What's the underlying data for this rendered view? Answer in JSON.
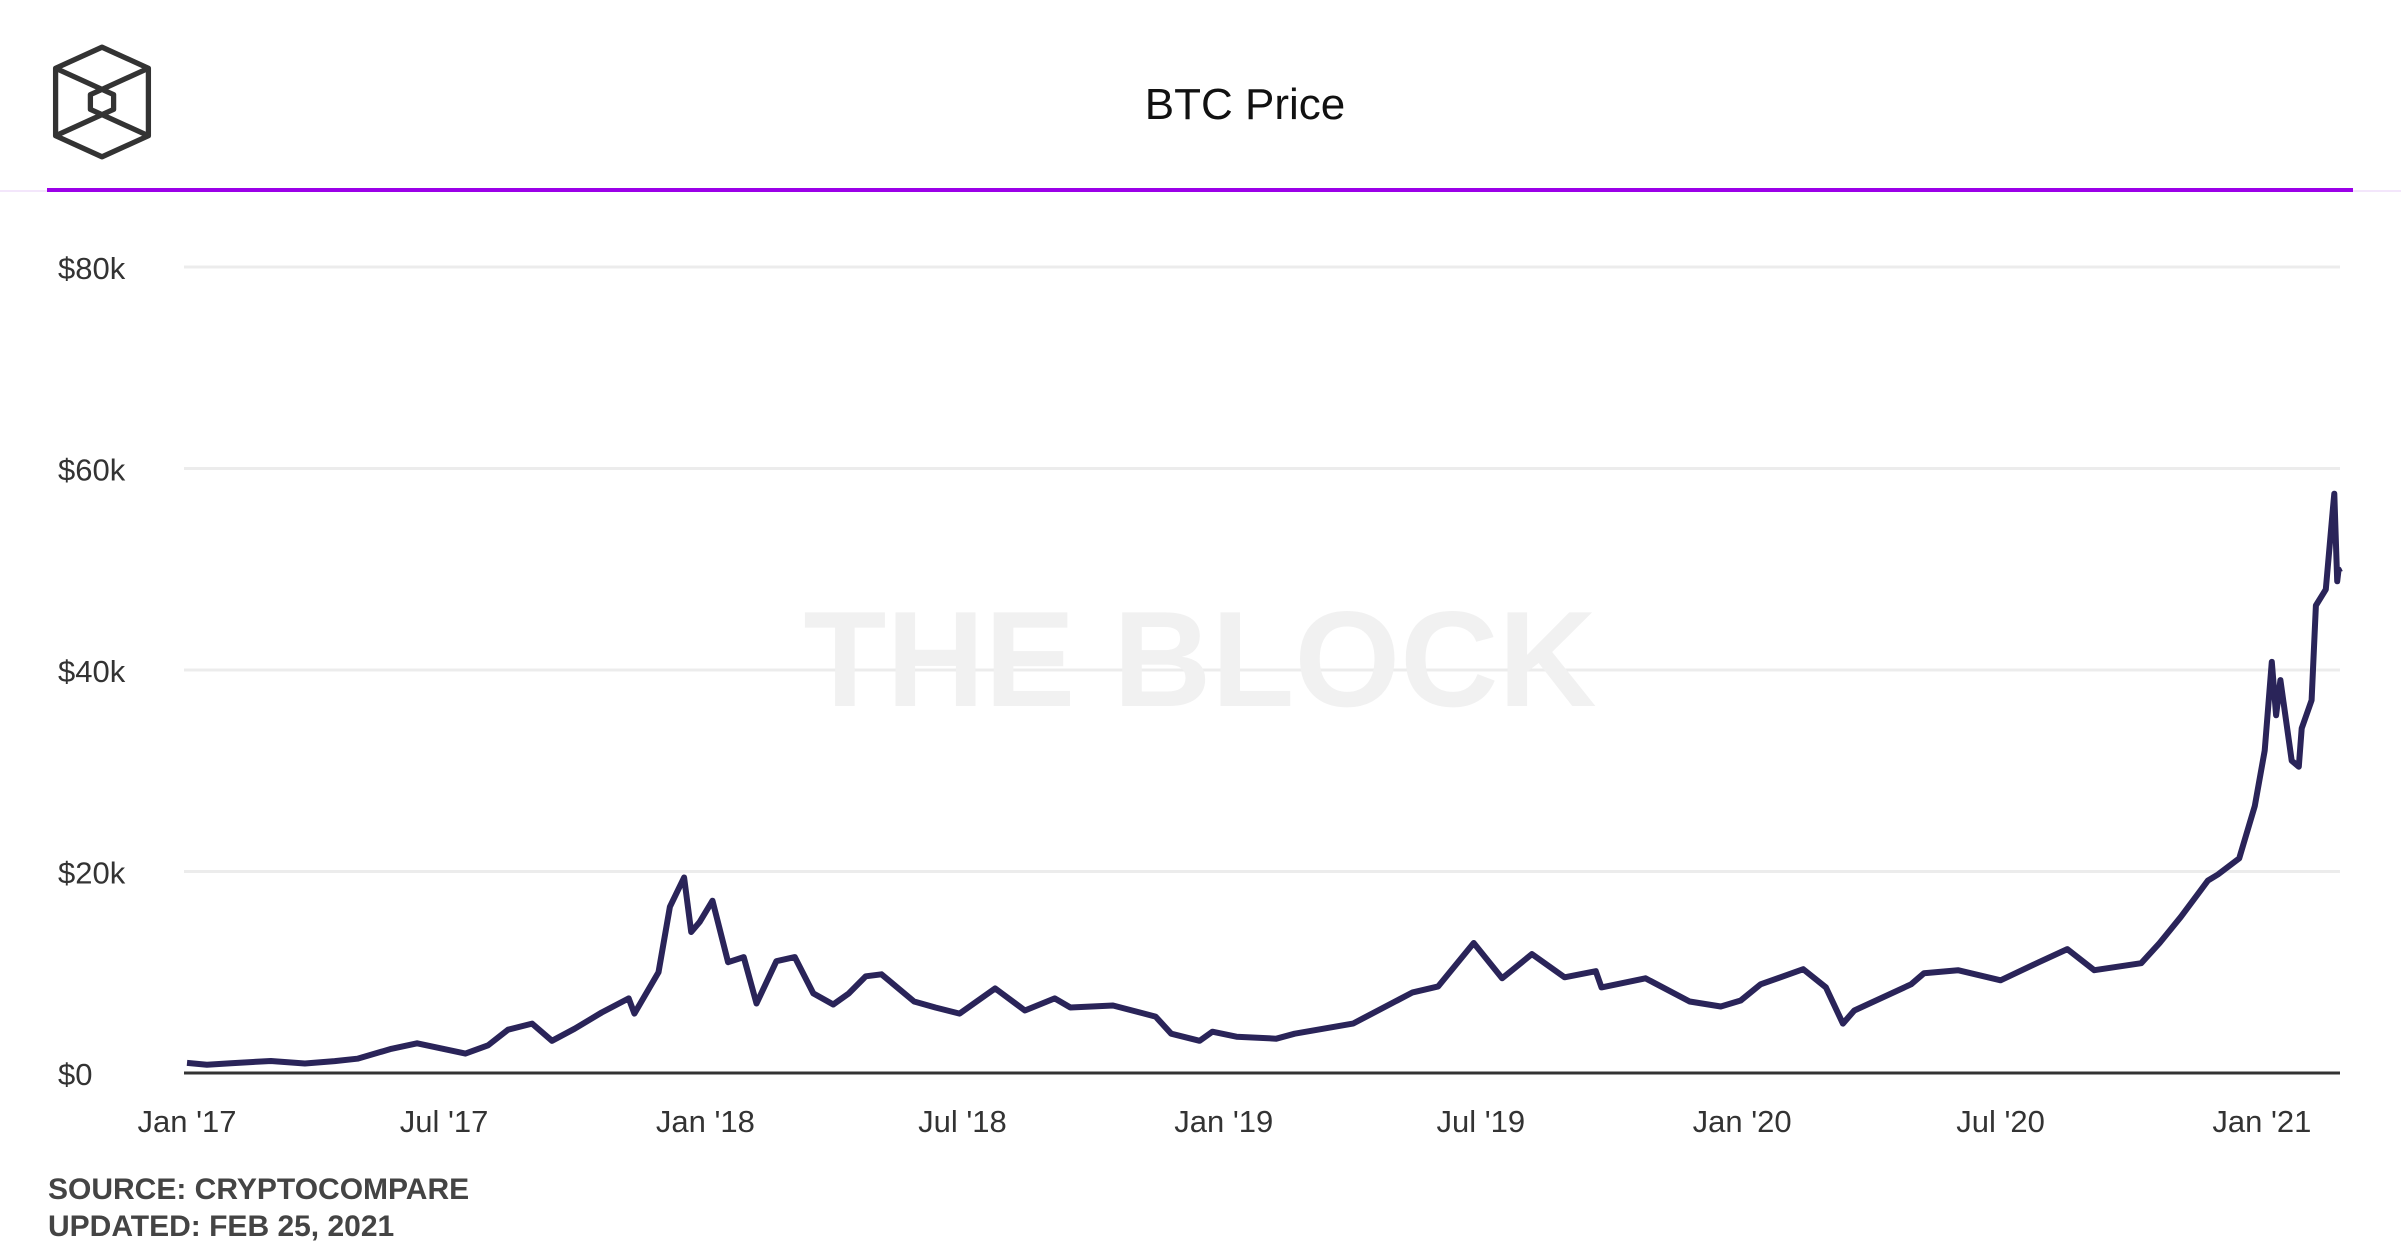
{
  "logo": {
    "name": "The Block"
  },
  "header": {
    "title": "BTC Price",
    "accent_color": "#9b00e8"
  },
  "watermark": "THE BLOCK",
  "footer": {
    "source": "SOURCE: CRYPTOCOMPARE",
    "updated": "UPDATED: FEB 25, 2021"
  },
  "chart_data": {
    "type": "line",
    "title": "BTC Price",
    "xlabel": "",
    "ylabel": "",
    "xlim": [
      "2017-01-01",
      "2021-02-25"
    ],
    "ylim": [
      0,
      80000
    ],
    "grid": true,
    "line_color": "#2a2459",
    "y_ticks": [
      {
        "value": 0,
        "label": "$0"
      },
      {
        "value": 20000,
        "label": "$20k"
      },
      {
        "value": 40000,
        "label": "$40k"
      },
      {
        "value": 60000,
        "label": "$60k"
      },
      {
        "value": 80000,
        "label": "$80k"
      }
    ],
    "x_ticks": [
      {
        "date": "2017-01-01",
        "label": "Jan '17"
      },
      {
        "date": "2017-07-01",
        "label": "Jul '17"
      },
      {
        "date": "2018-01-01",
        "label": "Jan '18"
      },
      {
        "date": "2018-07-01",
        "label": "Jul '18"
      },
      {
        "date": "2019-01-01",
        "label": "Jan '19"
      },
      {
        "date": "2019-07-01",
        "label": "Jul '19"
      },
      {
        "date": "2020-01-01",
        "label": "Jan '20"
      },
      {
        "date": "2020-07-01",
        "label": "Jul '20"
      },
      {
        "date": "2021-01-01",
        "label": "Jan '21"
      }
    ],
    "series": [
      {
        "points": [
          [
            "2017-01-01",
            1000
          ],
          [
            "2017-01-15",
            820
          ],
          [
            "2017-02-01",
            970
          ],
          [
            "2017-03-01",
            1190
          ],
          [
            "2017-03-25",
            940
          ],
          [
            "2017-04-15",
            1180
          ],
          [
            "2017-05-01",
            1420
          ],
          [
            "2017-05-25",
            2400
          ],
          [
            "2017-06-12",
            2950
          ],
          [
            "2017-07-16",
            1930
          ],
          [
            "2017-08-01",
            2750
          ],
          [
            "2017-08-15",
            4300
          ],
          [
            "2017-09-01",
            4900
          ],
          [
            "2017-09-15",
            3200
          ],
          [
            "2017-10-01",
            4400
          ],
          [
            "2017-10-20",
            6000
          ],
          [
            "2017-11-08",
            7400
          ],
          [
            "2017-11-12",
            5900
          ],
          [
            "2017-11-29",
            10000
          ],
          [
            "2017-12-07",
            16500
          ],
          [
            "2017-12-17",
            19400
          ],
          [
            "2017-12-22",
            14000
          ],
          [
            "2017-12-28",
            15000
          ],
          [
            "2018-01-06",
            17100
          ],
          [
            "2018-01-17",
            11000
          ],
          [
            "2018-01-28",
            11500
          ],
          [
            "2018-02-06",
            6900
          ],
          [
            "2018-02-20",
            11100
          ],
          [
            "2018-03-05",
            11500
          ],
          [
            "2018-03-18",
            7900
          ],
          [
            "2018-04-01",
            6800
          ],
          [
            "2018-04-12",
            7900
          ],
          [
            "2018-04-24",
            9600
          ],
          [
            "2018-05-05",
            9800
          ],
          [
            "2018-05-28",
            7100
          ],
          [
            "2018-06-12",
            6500
          ],
          [
            "2018-06-29",
            5900
          ],
          [
            "2018-07-24",
            8400
          ],
          [
            "2018-08-14",
            6200
          ],
          [
            "2018-09-04",
            7400
          ],
          [
            "2018-09-15",
            6500
          ],
          [
            "2018-10-15",
            6700
          ],
          [
            "2018-11-14",
            5600
          ],
          [
            "2018-11-25",
            3900
          ],
          [
            "2018-12-15",
            3200
          ],
          [
            "2018-12-24",
            4100
          ],
          [
            "2019-01-10",
            3600
          ],
          [
            "2019-02-07",
            3400
          ],
          [
            "2019-02-20",
            3900
          ],
          [
            "2019-04-02",
            4900
          ],
          [
            "2019-05-14",
            8000
          ],
          [
            "2019-06-01",
            8600
          ],
          [
            "2019-06-26",
            12900
          ],
          [
            "2019-07-16",
            9400
          ],
          [
            "2019-08-06",
            11800
          ],
          [
            "2019-08-29",
            9500
          ],
          [
            "2019-09-20",
            10100
          ],
          [
            "2019-09-24",
            8500
          ],
          [
            "2019-10-25",
            9400
          ],
          [
            "2019-11-25",
            7100
          ],
          [
            "2019-12-17",
            6600
          ],
          [
            "2019-12-31",
            7200
          ],
          [
            "2020-01-14",
            8800
          ],
          [
            "2020-02-13",
            10300
          ],
          [
            "2020-02-29",
            8500
          ],
          [
            "2020-03-12",
            4900
          ],
          [
            "2020-03-20",
            6200
          ],
          [
            "2020-04-29",
            8800
          ],
          [
            "2020-05-08",
            9900
          ],
          [
            "2020-06-01",
            10200
          ],
          [
            "2020-07-01",
            9200
          ],
          [
            "2020-07-28",
            11000
          ],
          [
            "2020-08-17",
            12300
          ],
          [
            "2020-09-05",
            10200
          ],
          [
            "2020-10-08",
            10900
          ],
          [
            "2020-10-21",
            12900
          ],
          [
            "2020-11-05",
            15500
          ],
          [
            "2020-11-24",
            19100
          ],
          [
            "2020-12-01",
            19700
          ],
          [
            "2020-12-16",
            21300
          ],
          [
            "2020-12-27",
            26500
          ],
          [
            "2021-01-03",
            32000
          ],
          [
            "2021-01-08",
            40800
          ],
          [
            "2021-01-11",
            35500
          ],
          [
            "2021-01-14",
            39000
          ],
          [
            "2021-01-22",
            31000
          ],
          [
            "2021-01-27",
            30400
          ],
          [
            "2021-01-29",
            34200
          ],
          [
            "2021-02-05",
            37000
          ],
          [
            "2021-02-08",
            46400
          ],
          [
            "2021-02-15",
            48000
          ],
          [
            "2021-02-20",
            56000
          ],
          [
            "2021-02-21",
            57500
          ],
          [
            "2021-02-23",
            48800
          ],
          [
            "2021-02-24",
            50000
          ],
          [
            "2021-02-25",
            49700
          ]
        ]
      }
    ]
  }
}
